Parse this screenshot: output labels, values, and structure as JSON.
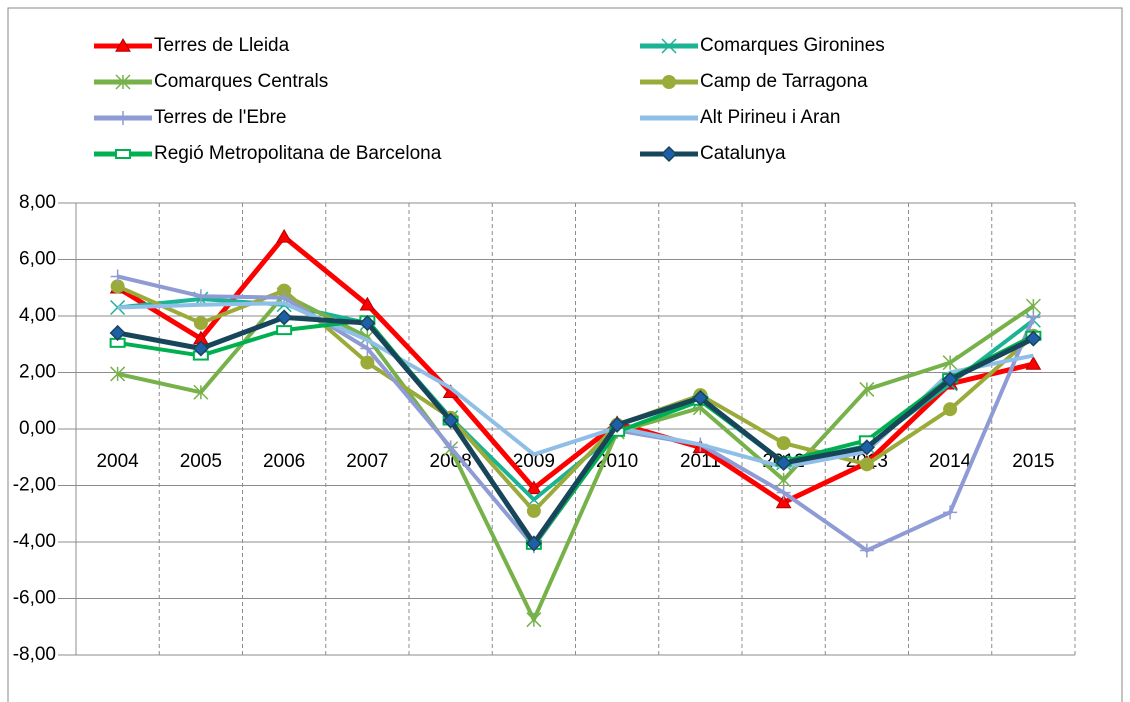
{
  "chart_data": {
    "type": "line",
    "categories": [
      "2004",
      "2005",
      "2006",
      "2007",
      "2008",
      "2009",
      "2010",
      "2011",
      "2012",
      "2013",
      "2014",
      "2015"
    ],
    "series": [
      {
        "name": "Terres de Lleida",
        "color": "#ff0000",
        "marker": "triangle",
        "values": [
          5.0,
          3.2,
          6.8,
          4.4,
          1.3,
          -2.1,
          0.2,
          -0.65,
          -2.6,
          -1.2,
          1.6,
          2.3
        ]
      },
      {
        "name": "Comarques Gironines",
        "color": "#1ab394",
        "marker": "x",
        "values": [
          4.3,
          4.6,
          4.4,
          3.75,
          0.4,
          -2.5,
          -0.1,
          1.0,
          -1.2,
          -0.6,
          1.6,
          3.85
        ]
      },
      {
        "name": "Comarques Centrals",
        "color": "#77b14a",
        "marker": "star",
        "values": [
          1.95,
          1.3,
          4.75,
          3.25,
          -0.7,
          -6.75,
          -0.1,
          0.75,
          -1.8,
          1.4,
          2.35,
          4.35
        ]
      },
      {
        "name": "Camp de Tarragona",
        "color": "#9aab3a",
        "marker": "circle",
        "values": [
          5.05,
          3.75,
          4.9,
          2.35,
          0.4,
          -2.9,
          0.15,
          1.2,
          -0.5,
          -1.25,
          0.7,
          3.3
        ]
      },
      {
        "name": "Terres de l'Ebre",
        "color": "#8e9bd4",
        "marker": "plus",
        "values": [
          5.4,
          4.7,
          4.65,
          2.85,
          -0.65,
          -4.15,
          -0.05,
          -0.55,
          -2.25,
          -4.3,
          -2.95,
          3.95
        ]
      },
      {
        "name": "Alt Pirineu i Aran",
        "color": "#8fbfe6",
        "marker": "none",
        "values": [
          4.3,
          4.4,
          4.45,
          3.15,
          1.45,
          -0.9,
          0.05,
          -0.55,
          -1.35,
          -0.8,
          2.0,
          2.6
        ]
      },
      {
        "name": "Regió Metropolitana de Barcelona",
        "color": "#00b050",
        "marker": "dash",
        "values": [
          3.05,
          2.6,
          3.5,
          3.85,
          0.3,
          -4.1,
          -0.1,
          1.0,
          -1.15,
          -0.4,
          1.8,
          3.3
        ]
      },
      {
        "name": "Catalunya",
        "color": "#17455a",
        "marker": "diamond",
        "values": [
          3.4,
          2.85,
          3.95,
          3.75,
          0.3,
          -4.05,
          0.15,
          1.1,
          -1.2,
          -0.65,
          1.75,
          3.2
        ]
      }
    ],
    "ylim": [
      -8,
      8
    ],
    "yticks": [
      {
        "value": -8,
        "label": "-8,00"
      },
      {
        "value": -6,
        "label": "-6,00"
      },
      {
        "value": -4,
        "label": "-4,00"
      },
      {
        "value": -2,
        "label": "-2,00"
      },
      {
        "value": 0,
        "label": "0,00"
      },
      {
        "value": 2,
        "label": "2,00"
      },
      {
        "value": 4,
        "label": "4,00"
      },
      {
        "value": 6,
        "label": "6,00"
      },
      {
        "value": 8,
        "label": "8,00"
      }
    ],
    "grid": true,
    "legend": "top"
  }
}
